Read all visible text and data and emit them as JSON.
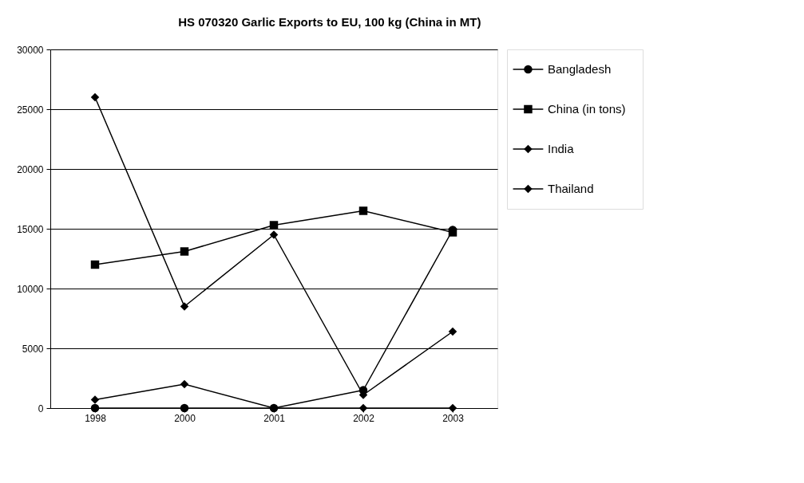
{
  "chart_data": {
    "type": "line",
    "title": "HS 070320 Garlic Exports to EU, 100 kg (China in MT)",
    "categories": [
      "1998",
      "2000",
      "2001",
      "2002",
      "2003"
    ],
    "series": [
      {
        "name": "Bangladesh",
        "color": "#000000",
        "marker": "circle",
        "values": [
          0,
          0,
          0,
          1500,
          14900
        ]
      },
      {
        "name": "China (in tons)",
        "color": "#000000",
        "marker": "square",
        "values": [
          12000,
          13100,
          15300,
          16500,
          14700
        ]
      },
      {
        "name": "India",
        "color": "#000000",
        "marker": "diamond",
        "values": [
          26000,
          8500,
          14500,
          1100,
          6400
        ]
      },
      {
        "name": "Thailand",
        "color": "#000000",
        "marker": "diamond",
        "values": [
          700,
          2000,
          0,
          0,
          0
        ]
      }
    ],
    "ylim": [
      0,
      30000
    ],
    "yticks": [
      0,
      5000,
      10000,
      15000,
      20000,
      25000,
      30000
    ],
    "grid": "y",
    "legend": "right",
    "line_style": "solid"
  }
}
